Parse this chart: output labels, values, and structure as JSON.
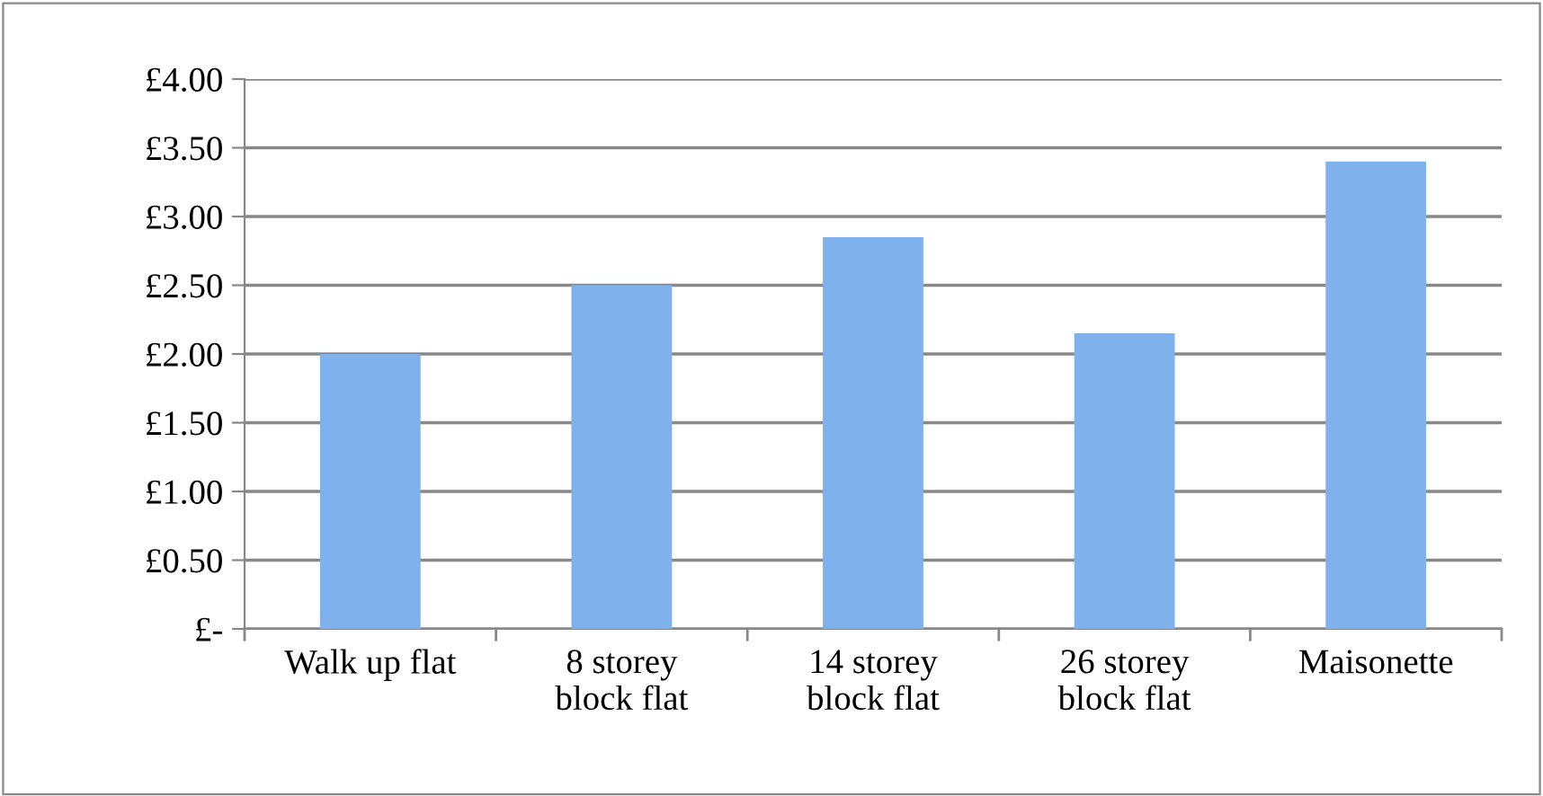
{
  "chart_data": {
    "type": "bar",
    "categories": [
      "Walk up flat",
      "8 storey\nblock flat",
      "14 storey\nblock flat",
      "26 storey\nblock flat",
      "Maisonette"
    ],
    "values": [
      2.0,
      2.5,
      2.85,
      2.15,
      3.4
    ],
    "color": "#7fb1ec",
    "ylim": [
      0,
      4
    ],
    "yticks": [
      {
        "value": 0,
        "label": "£-"
      },
      {
        "value": 0.5,
        "label": "£0.50"
      },
      {
        "value": 1,
        "label": "£1.00"
      },
      {
        "value": 1.5,
        "label": "£1.50"
      },
      {
        "value": 2,
        "label": "£2.00"
      },
      {
        "value": 2.5,
        "label": "£2.50"
      },
      {
        "value": 3,
        "label": "£3.00"
      },
      {
        "value": 3.5,
        "label": "£3.50"
      },
      {
        "value": 4,
        "label": "£4.00"
      }
    ],
    "grid": "y",
    "legend": false
  }
}
